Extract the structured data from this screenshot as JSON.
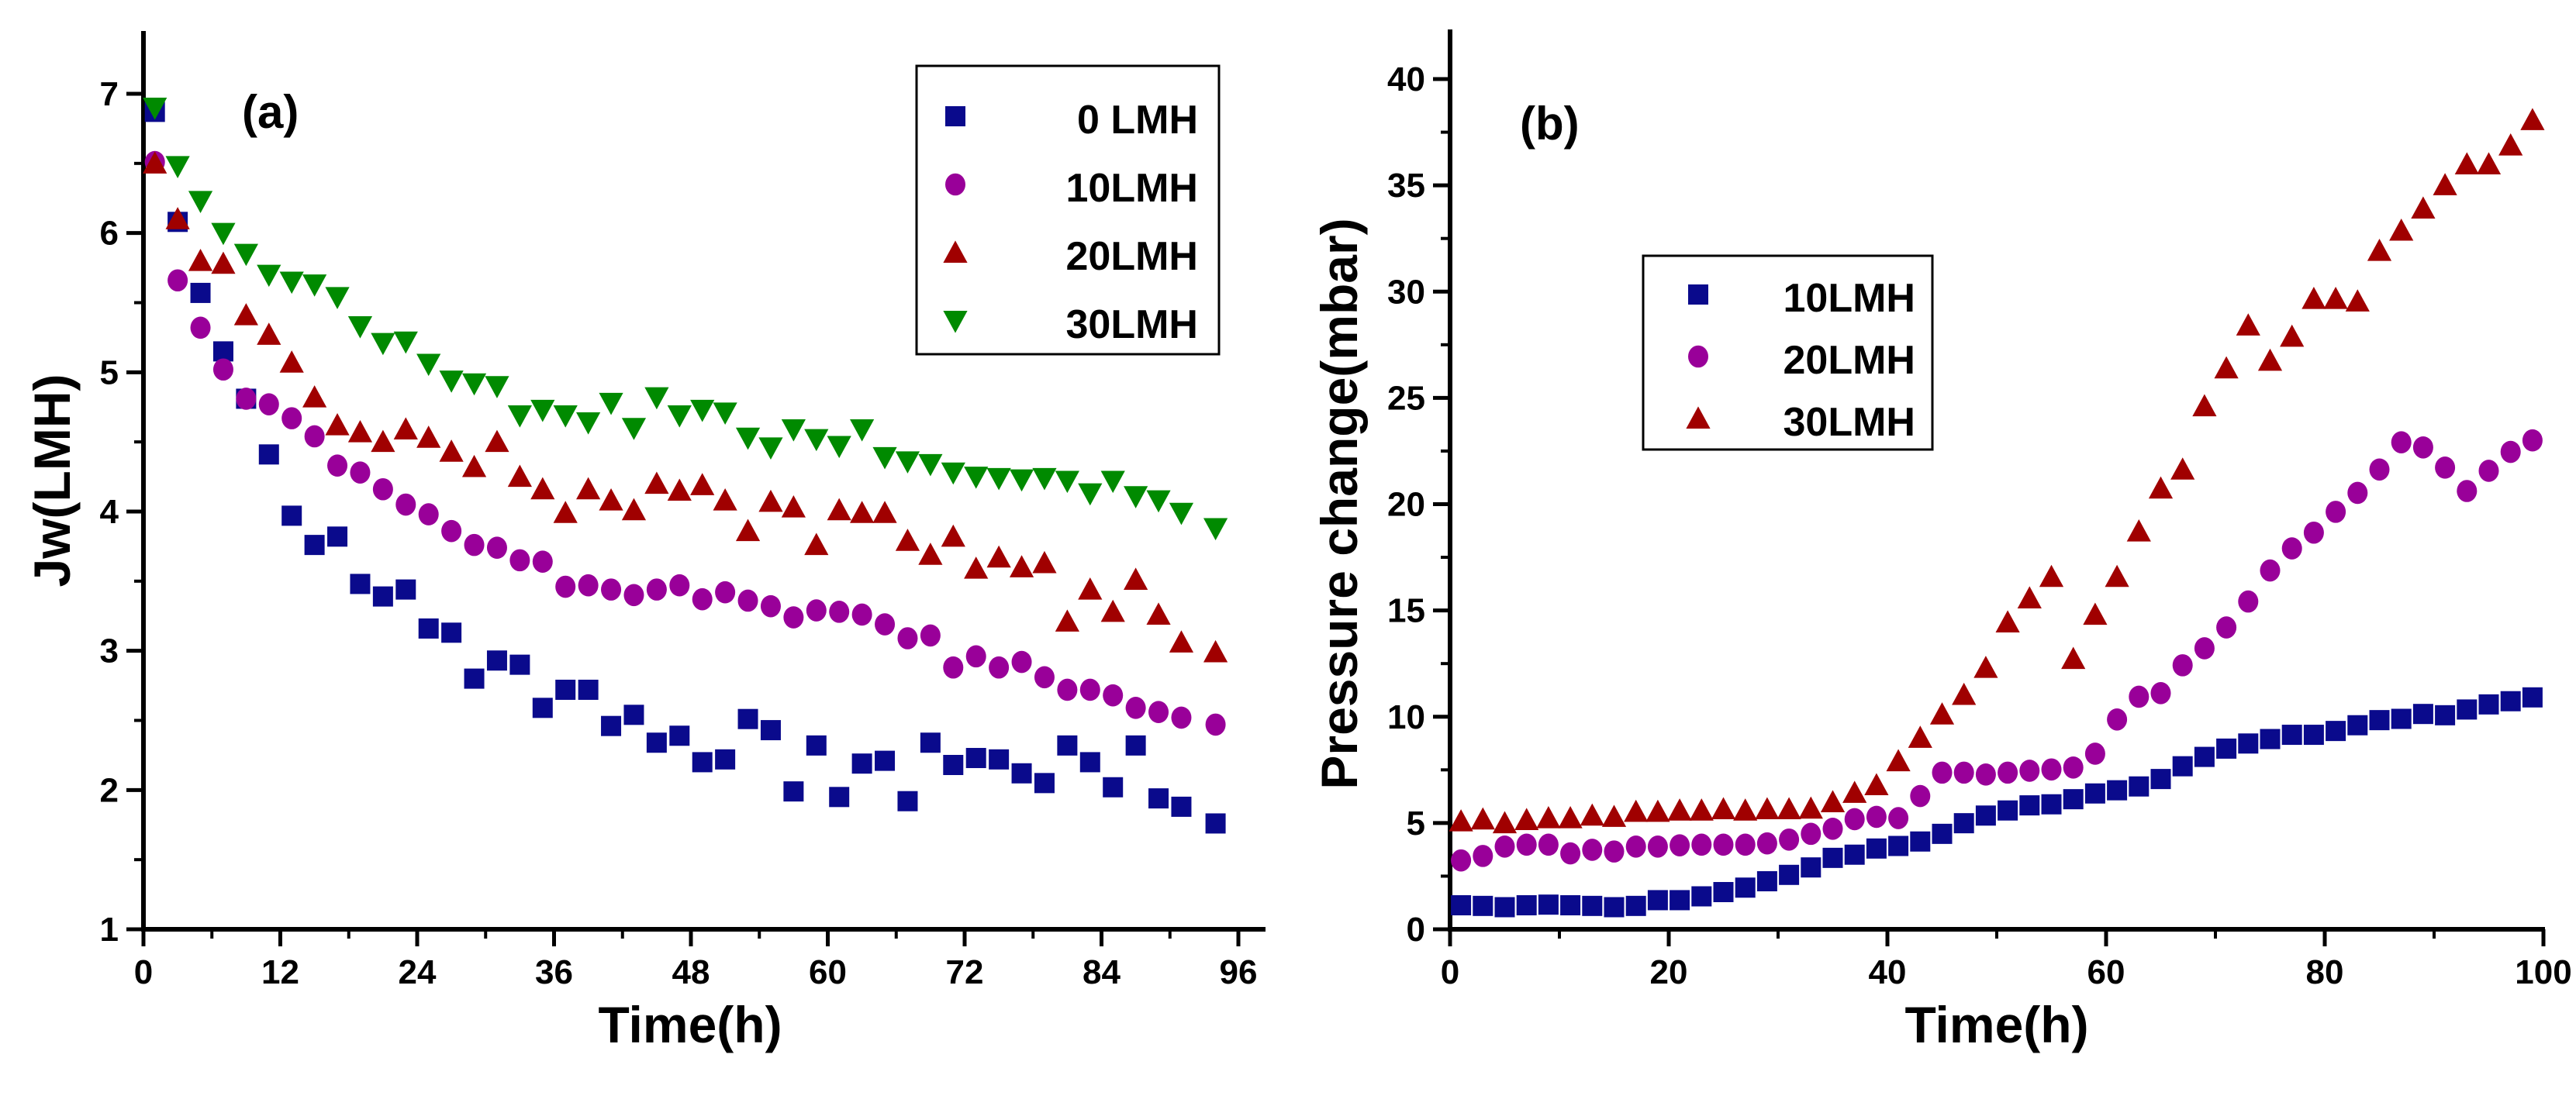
{
  "colors": {
    "s0": "#0a0a8c",
    "s1": "#990099",
    "s2": "#a00000",
    "s3": "#008a00"
  },
  "chart_data": [
    {
      "type": "scatter",
      "panel_label": "(a)",
      "xlabel": "Time(h)",
      "ylabel": "Jw(LMH)",
      "xlim": [
        0,
        98
      ],
      "ylim": [
        1,
        7.5
      ],
      "xticks": [
        0,
        12,
        24,
        36,
        48,
        60,
        72,
        84,
        96
      ],
      "yticks": [
        1,
        2,
        3,
        4,
        5,
        6,
        7
      ],
      "legend_position": "top-right",
      "x": [
        1,
        3,
        5,
        7,
        9,
        11,
        13,
        15,
        17,
        19,
        21,
        23,
        25,
        27,
        29,
        31,
        33,
        35,
        37,
        39,
        41,
        43,
        45,
        47,
        49,
        51,
        53,
        55,
        57,
        59,
        61,
        63,
        65,
        67,
        69,
        71,
        73,
        75,
        77,
        79,
        81,
        83,
        85,
        87,
        89,
        91,
        94
      ],
      "series": [
        {
          "name": "0 LMH",
          "marker": "square",
          "values": [
            6.87,
            6.08,
            5.57,
            5.15,
            4.81,
            4.41,
            3.97,
            3.76,
            3.82,
            3.48,
            3.39,
            3.44,
            3.16,
            3.13,
            2.8,
            2.93,
            2.9,
            2.59,
            2.72,
            2.72,
            2.46,
            2.54,
            2.34,
            2.39,
            2.2,
            2.22,
            2.51,
            2.43,
            1.99,
            2.32,
            1.95,
            2.19,
            2.21,
            1.92,
            2.34,
            2.18,
            2.23,
            2.22,
            2.12,
            2.05,
            2.32,
            2.2,
            2.02,
            2.32,
            1.94,
            1.88,
            1.76
          ]
        },
        {
          "name": "10LMH",
          "marker": "circle",
          "values": [
            6.51,
            5.66,
            5.32,
            5.02,
            4.81,
            4.77,
            4.67,
            4.54,
            4.33,
            4.28,
            4.16,
            4.05,
            3.98,
            3.86,
            3.76,
            3.74,
            3.65,
            3.64,
            3.46,
            3.47,
            3.44,
            3.4,
            3.44,
            3.47,
            3.37,
            3.42,
            3.36,
            3.32,
            3.24,
            3.29,
            3.28,
            3.26,
            3.19,
            3.09,
            3.11,
            2.88,
            2.96,
            2.88,
            2.92,
            2.81,
            2.72,
            2.72,
            2.68,
            2.59,
            2.56,
            2.52,
            2.47
          ]
        },
        {
          "name": "20LMH",
          "marker": "triangle-up",
          "values": [
            6.5,
            6.1,
            5.8,
            5.78,
            5.41,
            5.27,
            5.07,
            4.82,
            4.62,
            4.57,
            4.5,
            4.59,
            4.53,
            4.43,
            4.32,
            4.5,
            4.25,
            4.16,
            3.99,
            4.16,
            4.08,
            4.01,
            4.2,
            4.15,
            4.19,
            4.08,
            3.86,
            4.07,
            4.03,
            3.76,
            4.01,
            3.99,
            3.99,
            3.79,
            3.69,
            3.82,
            3.59,
            3.67,
            3.6,
            3.63,
            3.21,
            3.44,
            3.28,
            3.51,
            3.26,
            3.06,
            2.99
          ]
        },
        {
          "name": "30LMH",
          "marker": "triangle-down",
          "values": [
            6.9,
            6.48,
            6.23,
            6.0,
            5.85,
            5.7,
            5.65,
            5.63,
            5.54,
            5.33,
            5.21,
            5.22,
            5.06,
            4.94,
            4.92,
            4.9,
            4.69,
            4.73,
            4.69,
            4.64,
            4.78,
            4.6,
            4.82,
            4.69,
            4.73,
            4.71,
            4.53,
            4.46,
            4.59,
            4.52,
            4.47,
            4.59,
            4.39,
            4.36,
            4.34,
            4.28,
            4.25,
            4.24,
            4.23,
            4.24,
            4.22,
            4.13,
            4.22,
            4.11,
            4.08,
            3.99,
            3.88
          ]
        }
      ]
    },
    {
      "type": "scatter",
      "panel_label": "(b)",
      "xlabel": "Time(h)",
      "ylabel": "Pressure change(mbar)",
      "xlim": [
        0,
        100
      ],
      "ylim": [
        0,
        42
      ],
      "xticks": [
        0,
        20,
        40,
        60,
        80,
        100
      ],
      "yticks": [
        0,
        5,
        10,
        15,
        20,
        25,
        30,
        35,
        40
      ],
      "legend_position": "upper-left",
      "x": [
        1,
        3,
        5,
        7,
        9,
        11,
        13,
        15,
        17,
        19,
        21,
        23,
        25,
        27,
        29,
        31,
        33,
        35,
        37,
        39,
        41,
        43,
        45,
        47,
        49,
        51,
        53,
        55,
        57,
        59,
        61,
        63,
        65,
        67,
        69,
        71,
        73,
        75,
        77,
        79,
        81,
        83,
        85,
        87,
        89,
        91,
        93,
        95,
        97,
        99
      ],
      "series": [
        {
          "name": "10LMH",
          "marker": "square",
          "values": [
            1.13,
            1.1,
            1.04,
            1.13,
            1.16,
            1.13,
            1.1,
            1.04,
            1.1,
            1.37,
            1.37,
            1.55,
            1.75,
            1.96,
            2.26,
            2.56,
            2.91,
            3.36,
            3.51,
            3.8,
            3.92,
            4.13,
            4.49,
            4.99,
            5.35,
            5.59,
            5.83,
            5.88,
            6.12,
            6.39,
            6.54,
            6.72,
            7.07,
            7.67,
            8.11,
            8.5,
            8.74,
            8.95,
            9.15,
            9.15,
            9.33,
            9.6,
            9.84,
            9.9,
            10.13,
            10.07,
            10.34,
            10.58,
            10.73,
            10.91
          ]
        },
        {
          "name": "20LMH",
          "marker": "circle",
          "values": [
            3.24,
            3.45,
            3.89,
            3.98,
            3.98,
            3.57,
            3.74,
            3.66,
            3.89,
            3.89,
            3.95,
            3.98,
            3.98,
            3.98,
            4.04,
            4.22,
            4.49,
            4.73,
            5.18,
            5.29,
            5.23,
            6.27,
            7.37,
            7.37,
            7.28,
            7.37,
            7.46,
            7.52,
            7.61,
            8.26,
            9.87,
            10.94,
            11.11,
            12.42,
            13.22,
            14.2,
            15.42,
            16.88,
            17.92,
            18.66,
            19.64,
            20.53,
            21.63,
            22.91,
            22.67,
            21.72,
            20.62,
            21.57,
            22.46,
            23.0
          ]
        },
        {
          "name": "30LMH",
          "marker": "triangle-up",
          "values": [
            5.08,
            5.17,
            4.99,
            5.14,
            5.23,
            5.23,
            5.35,
            5.29,
            5.53,
            5.53,
            5.59,
            5.59,
            5.65,
            5.59,
            5.65,
            5.65,
            5.68,
            5.98,
            6.42,
            6.78,
            7.91,
            9.01,
            10.11,
            11.03,
            12.3,
            14.44,
            15.57,
            16.58,
            12.72,
            14.8,
            16.58,
            18.72,
            20.74,
            21.63,
            24.61,
            26.39,
            28.41,
            26.75,
            27.88,
            29.66,
            29.66,
            29.54,
            31.92,
            32.87,
            33.91,
            35.01,
            35.99,
            35.99,
            36.88,
            38.07
          ]
        }
      ]
    }
  ]
}
